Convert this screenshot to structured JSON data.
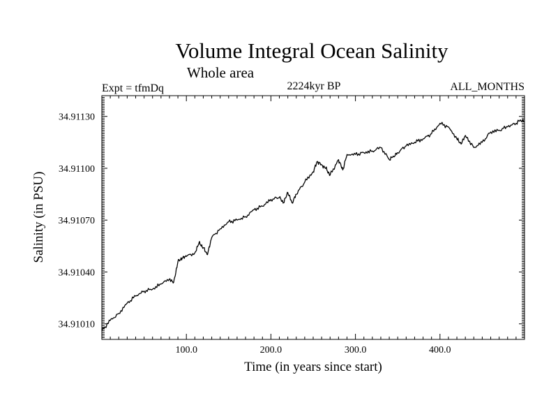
{
  "chart_data": {
    "type": "line",
    "title": "Volume Integral Ocean Salinity",
    "subtitle": "Whole area",
    "experiment_label": "Expt = tfmDq",
    "period_label": "2224kyr BP",
    "months_label": "ALL_MONTHS",
    "xlabel": "Time (in years since start)",
    "ylabel": "Salinity (in PSU)",
    "xlim": [
      0,
      500
    ],
    "ylim": [
      34.91001,
      34.91142
    ],
    "xticks": [
      100,
      200,
      300,
      400
    ],
    "xtick_labels": [
      "100.0",
      "200.0",
      "300.0",
      "400.0"
    ],
    "yticks": [
      34.9101,
      34.9104,
      34.9107,
      34.911,
      34.9113
    ],
    "ytick_labels": [
      "34.91010",
      "34.91040",
      "34.91070",
      "34.91100",
      "34.91130"
    ],
    "grid": false,
    "series": [
      {
        "name": "Salinity",
        "x": [
          0,
          10,
          20,
          30,
          40,
          50,
          60,
          70,
          80,
          85,
          90,
          95,
          100,
          110,
          115,
          120,
          125,
          130,
          140,
          150,
          160,
          170,
          180,
          190,
          200,
          210,
          215,
          220,
          225,
          230,
          240,
          250,
          255,
          260,
          265,
          270,
          280,
          285,
          290,
          300,
          310,
          320,
          330,
          340,
          345,
          350,
          360,
          370,
          380,
          390,
          400,
          410,
          420,
          425,
          430,
          440,
          450,
          460,
          470,
          480,
          490,
          495,
          500
        ],
        "values": [
          34.91006,
          34.91012,
          34.91016,
          34.91022,
          34.91026,
          34.91029,
          34.9103,
          34.91033,
          34.91036,
          34.91034,
          34.91046,
          34.91048,
          34.91049,
          34.91051,
          34.91057,
          34.91054,
          34.9105,
          34.9106,
          34.91065,
          34.91069,
          34.9107,
          34.91072,
          34.91076,
          34.91078,
          34.91082,
          34.91083,
          34.9108,
          34.91086,
          34.9108,
          34.91085,
          34.91092,
          34.91098,
          34.91104,
          34.91102,
          34.911,
          34.91096,
          34.91105,
          34.91099,
          34.91108,
          34.91108,
          34.91109,
          34.9111,
          34.91112,
          34.91105,
          34.91107,
          34.91109,
          34.91113,
          34.91115,
          34.91117,
          34.9112,
          34.91126,
          34.91124,
          34.91117,
          34.91114,
          34.91119,
          34.91112,
          34.91115,
          34.91121,
          34.91122,
          34.91124,
          34.91126,
          34.91128,
          34.91127
        ]
      }
    ]
  }
}
